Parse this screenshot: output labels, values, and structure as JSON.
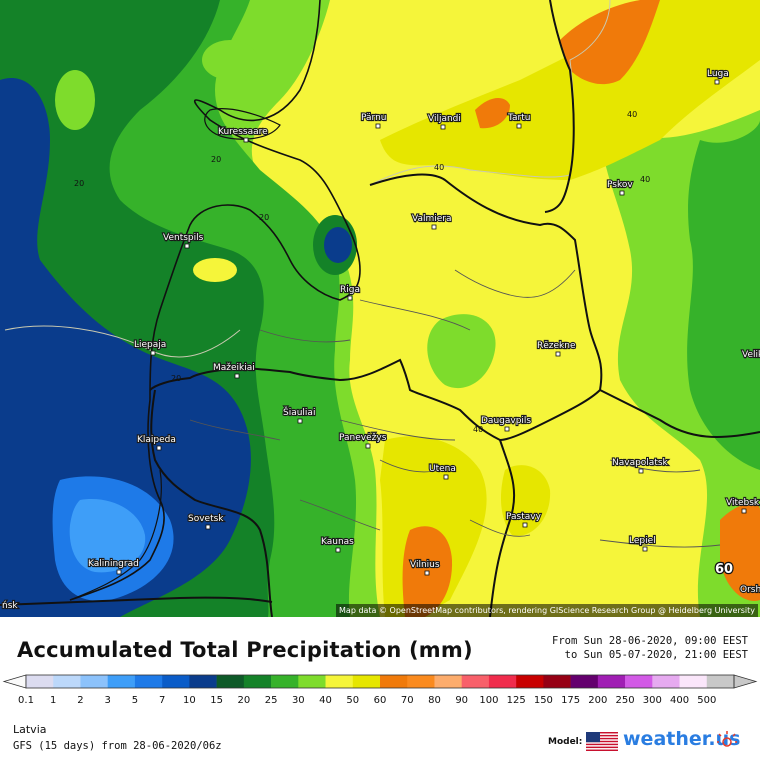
{
  "map": {
    "cities": [
      {
        "name": "Kuressaare"
      },
      {
        "name": "Pärnu"
      },
      {
        "name": "Viljandi"
      },
      {
        "name": "Tartu"
      },
      {
        "name": "Luga"
      },
      {
        "name": "Pskov"
      },
      {
        "name": "Valmiera"
      },
      {
        "name": "Ventspils"
      },
      {
        "name": "Riga"
      },
      {
        "name": "Liepaja"
      },
      {
        "name": "Mažeikiai"
      },
      {
        "name": "Rēzekne"
      },
      {
        "name": "Šiauliai"
      },
      {
        "name": "Panevėžys"
      },
      {
        "name": "Daugavpils"
      },
      {
        "name": "Klaipeda"
      },
      {
        "name": "Utena"
      },
      {
        "name": "Navapolatsk"
      },
      {
        "name": "Sovetsk"
      },
      {
        "name": "Pastavy"
      },
      {
        "name": "Vitebsk"
      },
      {
        "name": "Kaunas"
      },
      {
        "name": "Lepiel"
      },
      {
        "name": "Kaliningrad"
      },
      {
        "name": "Vilnius"
      },
      {
        "name": "Orsh"
      },
      {
        "name": "Velik"
      },
      {
        "name": "ńsk"
      }
    ],
    "contour_labels": [
      "20",
      "20",
      "20",
      "20",
      "40",
      "40",
      "40",
      "40"
    ],
    "point_value": "60",
    "attribution": "Map data © OpenStreetMap contributors, rendering GIScience Research Group @ Heidelberg University"
  },
  "header": {
    "title": "Accumulated Total Precipitation (mm)",
    "from": "From Sun 28-06-2020, 09:00 EEST",
    "to": "to Sun 05-07-2020, 21:00 EEST"
  },
  "colorscale": {
    "labels": [
      "0.1",
      "1",
      "2",
      "3",
      "5",
      "7",
      "10",
      "15",
      "20",
      "25",
      "30",
      "40",
      "50",
      "60",
      "70",
      "80",
      "90",
      "100",
      "125",
      "150",
      "175",
      "200",
      "250",
      "300",
      "400",
      "500"
    ],
    "colors": [
      "#dcdcf0",
      "#bcd8fa",
      "#8cc2fb",
      "#3e9ef8",
      "#1e7ae8",
      "#0a5cc8",
      "#0a3c8c",
      "#0e5a28",
      "#148228",
      "#36b22a",
      "#7edc2c",
      "#f5f53a",
      "#e6e600",
      "#f07a0a",
      "#fa8a1e",
      "#fcac6c",
      "#f8606a",
      "#f02c4c",
      "#c80000",
      "#960014",
      "#64006e",
      "#a01eb4",
      "#d25ae6",
      "#e6aaf0",
      "#fae6fa",
      "#c8c8c8"
    ]
  },
  "footer": {
    "region": "Latvia",
    "model_run": "GFS (15 days) from  28-06-2020/06z",
    "model_label": "Model:",
    "brand": "weather.us"
  }
}
